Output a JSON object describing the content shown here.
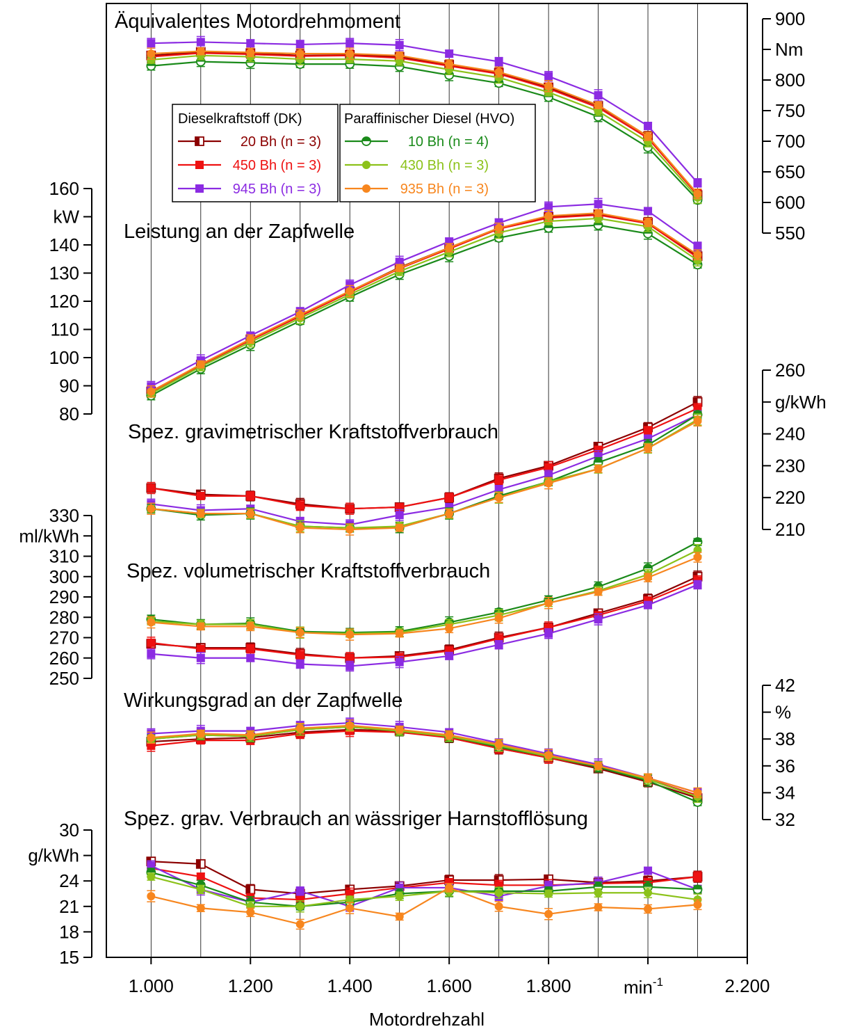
{
  "legend": {
    "group_dk_title": "Dieselkraftstoff (DK)",
    "group_hvo_title": "Paraffinischer Diesel (HVO)"
  },
  "x_axis": {
    "label": "Motordrehzahl",
    "unit": "min",
    "unit_exp": "-1",
    "ticks": [
      1000,
      1200,
      1400,
      1600,
      1800,
      2000,
      2200
    ],
    "tick_labels": [
      "1.000",
      "1.200",
      "1.400",
      "1.600",
      "1.800",
      "",
      "2.200"
    ],
    "range": [
      910,
      2200
    ]
  },
  "series_styles": [
    {
      "id": "dk20",
      "label": "20 Bh (n = 3)",
      "color": "#8B0000",
      "marker": "square-half"
    },
    {
      "id": "dk450",
      "label": "450 Bh (n = 3)",
      "color": "#EE1111",
      "marker": "square"
    },
    {
      "id": "dk945",
      "label": "945 Bh (n = 3)",
      "color": "#8B2BE2",
      "marker": "square"
    },
    {
      "id": "hvo10",
      "label": "10 Bh (n = 4)",
      "color": "#1A8A1A",
      "marker": "circle-half"
    },
    {
      "id": "hvo430",
      "label": "430 Bh (n = 3)",
      "color": "#8CC21A",
      "marker": "circle"
    },
    {
      "id": "hvo935",
      "label": "935 Bh (n = 3)",
      "color": "#F7861E",
      "marker": "circle"
    }
  ],
  "chart_data": [
    {
      "type": "line",
      "title": "Äquivalentes Motordrehmoment",
      "ylabel": "Nm",
      "yaxis_side": "right",
      "ylim": [
        550,
        900
      ],
      "yticks": [
        550,
        600,
        650,
        700,
        750,
        800,
        850,
        900
      ],
      "x": [
        1000,
        1100,
        1200,
        1300,
        1400,
        1500,
        1600,
        1700,
        1800,
        1900,
        2000,
        2100
      ],
      "series": [
        {
          "name": "20 Bh (n = 3)",
          "values": [
            840,
            846,
            844,
            840,
            841,
            838,
            825,
            812,
            788,
            758,
            708,
            612
          ]
        },
        {
          "name": "450 Bh (n = 3)",
          "values": [
            838,
            844,
            842,
            839,
            840,
            836,
            823,
            810,
            786,
            755,
            705,
            612
          ]
        },
        {
          "name": "945 Bh (n = 3)",
          "values": [
            860,
            862,
            860,
            858,
            860,
            857,
            843,
            830,
            806,
            775,
            725,
            632
          ]
        },
        {
          "name": "10 Bh (n = 4)",
          "values": [
            823,
            830,
            828,
            826,
            826,
            822,
            808,
            795,
            772,
            740,
            690,
            604
          ]
        },
        {
          "name": "430 Bh (n = 3)",
          "values": [
            833,
            840,
            838,
            834,
            834,
            831,
            817,
            804,
            780,
            749,
            699,
            608
          ]
        },
        {
          "name": "935 Bh (n = 3)",
          "values": [
            843,
            847,
            845,
            843,
            843,
            840,
            826,
            813,
            790,
            759,
            708,
            614
          ]
        }
      ]
    },
    {
      "type": "line",
      "title": "Leistung an der Zapfwelle",
      "ylabel": "kW",
      "yaxis_side": "left",
      "ylim": [
        80,
        160
      ],
      "yticks": [
        80,
        90,
        100,
        110,
        120,
        130,
        140,
        150,
        160
      ],
      "x": [
        1000,
        1100,
        1200,
        1300,
        1400,
        1500,
        1600,
        1700,
        1800,
        1900,
        2000,
        2100
      ],
      "series": [
        {
          "name": "20 Bh (n = 3)",
          "values": [
            88,
            97.5,
            106.5,
            115,
            123.5,
            132,
            139,
            146,
            150,
            151,
            148,
            136
          ]
        },
        {
          "name": "450 Bh (n = 3)",
          "values": [
            87.8,
            97.3,
            106.2,
            114.7,
            123.2,
            131.6,
            138.6,
            145.7,
            149.6,
            150.6,
            147.6,
            135.5
          ]
        },
        {
          "name": "945 Bh (n = 3)",
          "values": [
            89.8,
            99,
            107.8,
            116.3,
            125.8,
            134,
            141.2,
            147.8,
            153.5,
            154.5,
            152,
            139.5
          ]
        },
        {
          "name": "10 Bh (n = 4)",
          "values": [
            86.5,
            96,
            104.5,
            113,
            121.5,
            129.5,
            136,
            142.5,
            146,
            147,
            144,
            133
          ]
        },
        {
          "name": "430 Bh (n = 3)",
          "values": [
            87.2,
            96.8,
            105.5,
            114,
            122.4,
            130.6,
            137.5,
            144.3,
            148.4,
            149.4,
            146.5,
            134.5
          ]
        },
        {
          "name": "935 Bh (n = 3)",
          "values": [
            88,
            97.6,
            106.6,
            115.2,
            123.6,
            131.8,
            139,
            146,
            150.3,
            151.3,
            148,
            136.5
          ]
        }
      ]
    },
    {
      "type": "line",
      "title": "Spez. gravimetrischer Kraftstoffverbrauch",
      "ylabel": "g/kWh",
      "yaxis_side": "right",
      "ylim": [
        210,
        260
      ],
      "yticks": [
        210,
        220,
        230,
        240,
        250,
        260
      ],
      "x": [
        1000,
        1100,
        1200,
        1300,
        1400,
        1500,
        1600,
        1700,
        1800,
        1900,
        2000,
        2100
      ],
      "series": [
        {
          "name": "20 Bh (n = 3)",
          "values": [
            223,
            221,
            220.5,
            218,
            216.5,
            217,
            220,
            226,
            230,
            236,
            242,
            250
          ]
        },
        {
          "name": "450 Bh (n = 3)",
          "values": [
            223,
            220.5,
            220.5,
            217.5,
            216.5,
            217,
            220,
            225.5,
            229.5,
            235,
            241,
            248
          ]
        },
        {
          "name": "945 Bh (n = 3)",
          "values": [
            218,
            216,
            216.5,
            212.5,
            211.5,
            214.5,
            217,
            222.5,
            227,
            233,
            238.5,
            246
          ]
        },
        {
          "name": "10 Bh (n = 4)",
          "values": [
            216.5,
            214.5,
            215,
            211,
            210.5,
            210.5,
            215,
            220.5,
            225,
            231,
            236.5,
            246
          ]
        },
        {
          "name": "430 Bh (n = 3)",
          "values": [
            216.5,
            215,
            215,
            211,
            210.5,
            211,
            215,
            220,
            225,
            229,
            235.5,
            244.5
          ]
        },
        {
          "name": "935 Bh (n = 3)",
          "values": [
            216.5,
            215,
            215,
            210.5,
            210,
            210.5,
            215,
            220,
            224.5,
            229,
            235.5,
            244
          ]
        }
      ]
    },
    {
      "type": "line",
      "title": "Spez. volumetrischer Kraftstoffverbrauch",
      "ylabel": "ml/kWh",
      "yaxis_side": "left",
      "ylim": [
        250,
        330
      ],
      "yticks": [
        250,
        260,
        270,
        280,
        290,
        300,
        310,
        320,
        330
      ],
      "x": [
        1000,
        1100,
        1200,
        1300,
        1400,
        1500,
        1600,
        1700,
        1800,
        1900,
        2000,
        2100
      ],
      "series": [
        {
          "name": "20 Bh (n = 3)",
          "values": [
            267,
            265,
            265,
            262,
            260,
            261,
            264,
            270,
            275,
            282,
            289,
            300
          ]
        },
        {
          "name": "450 Bh (n = 3)",
          "values": [
            267.5,
            264.5,
            264.5,
            261.5,
            260,
            260.5,
            263.5,
            269.5,
            275,
            281,
            288,
            298
          ]
        },
        {
          "name": "945 Bh (n = 3)",
          "values": [
            262,
            260,
            260,
            257,
            256,
            258,
            261,
            266.5,
            272,
            279,
            286,
            296
          ]
        },
        {
          "name": "10 Bh (n = 4)",
          "values": [
            279,
            276.5,
            277,
            273,
            272.5,
            273,
            277.5,
            282.5,
            288.5,
            295,
            304,
            317
          ]
        },
        {
          "name": "430 Bh (n = 3)",
          "values": [
            278,
            276.5,
            276.5,
            272.5,
            272,
            272.5,
            276.5,
            281,
            287,
            293,
            301,
            313
          ]
        },
        {
          "name": "935 Bh (n = 3)",
          "values": [
            277.5,
            275.5,
            275.5,
            272.5,
            271.5,
            272,
            274.5,
            279.5,
            287,
            292.5,
            299.5,
            309.5
          ]
        }
      ]
    },
    {
      "type": "line",
      "title": "Wirkungsgrad an der Zapfwelle",
      "ylabel": "%",
      "yaxis_side": "right",
      "ylim": [
        32,
        42
      ],
      "yticks": [
        32,
        34,
        36,
        38,
        40,
        42
      ],
      "x": [
        1000,
        1100,
        1200,
        1300,
        1400,
        1500,
        1600,
        1700,
        1800,
        1900,
        2000,
        2100
      ],
      "series": [
        {
          "name": "20 Bh (n = 3)",
          "values": [
            37.8,
            38,
            38.1,
            38.5,
            38.7,
            38.6,
            38.1,
            37.3,
            36.6,
            35.8,
            34.8,
            33.6
          ]
        },
        {
          "name": "450 Bh (n = 3)",
          "values": [
            37.5,
            37.9,
            37.9,
            38.4,
            38.6,
            38.5,
            38.1,
            37.3,
            36.6,
            35.9,
            35,
            33.8
          ]
        },
        {
          "name": "945 Bh (n = 3)",
          "values": [
            38.4,
            38.6,
            38.6,
            39,
            39.2,
            38.9,
            38.5,
            37.7,
            36.9,
            36.1,
            35.1,
            34
          ]
        },
        {
          "name": "10 Bh (n = 4)",
          "values": [
            38,
            38.3,
            38.2,
            38.7,
            38.9,
            38.6,
            38.2,
            37.4,
            36.7,
            35.9,
            34.9,
            33.3
          ]
        },
        {
          "name": "430 Bh (n = 3)",
          "values": [
            38,
            38.3,
            38.2,
            38.7,
            38.9,
            38.6,
            38.2,
            37.5,
            36.7,
            36,
            35,
            33.7
          ]
        },
        {
          "name": "935 Bh (n = 3)",
          "values": [
            38.1,
            38.4,
            38.3,
            38.8,
            39,
            38.7,
            38.3,
            37.6,
            36.8,
            36,
            35.1,
            34
          ]
        }
      ]
    },
    {
      "type": "line",
      "title": "Spez. grav. Verbrauch an wässriger Harnstofflösung",
      "ylabel": "g/kWh",
      "yaxis_side": "left",
      "ylim": [
        15,
        30
      ],
      "yticks": [
        15,
        18,
        21,
        24,
        27,
        30
      ],
      "x": [
        1000,
        1100,
        1200,
        1300,
        1400,
        1500,
        1600,
        1700,
        1800,
        1900,
        2000,
        2100
      ],
      "series": [
        {
          "name": "20 Bh (n = 3)",
          "values": [
            26.3,
            26,
            23,
            22.5,
            23,
            23.4,
            24.1,
            24.1,
            24.2,
            23.8,
            24,
            24.5
          ]
        },
        {
          "name": "450 Bh (n = 3)",
          "values": [
            25.5,
            24.5,
            22,
            21.8,
            22.5,
            23.2,
            23.8,
            23.5,
            23.5,
            23.7,
            23.8,
            24.5
          ]
        },
        {
          "name": "945 Bh (n = 3)",
          "values": [
            25.8,
            23,
            21.5,
            22.8,
            21,
            23.2,
            23.2,
            22.2,
            23.4,
            23.8,
            25.2,
            23
          ]
        },
        {
          "name": "10 Bh (n = 4)",
          "values": [
            25,
            23.5,
            21.5,
            21,
            21.5,
            22.5,
            22.8,
            22.8,
            22.8,
            23.3,
            23.3,
            23
          ]
        },
        {
          "name": "430 Bh (n = 3)",
          "values": [
            24.5,
            23,
            21,
            21,
            21.8,
            22.2,
            22.8,
            22.6,
            22.5,
            22.6,
            22.6,
            21.8
          ]
        },
        {
          "name": "935 Bh (n = 3)",
          "values": [
            22.2,
            20.8,
            20.3,
            18.9,
            20.8,
            19.8,
            23.2,
            21,
            20.1,
            20.9,
            20.7,
            21.2
          ]
        }
      ]
    }
  ]
}
